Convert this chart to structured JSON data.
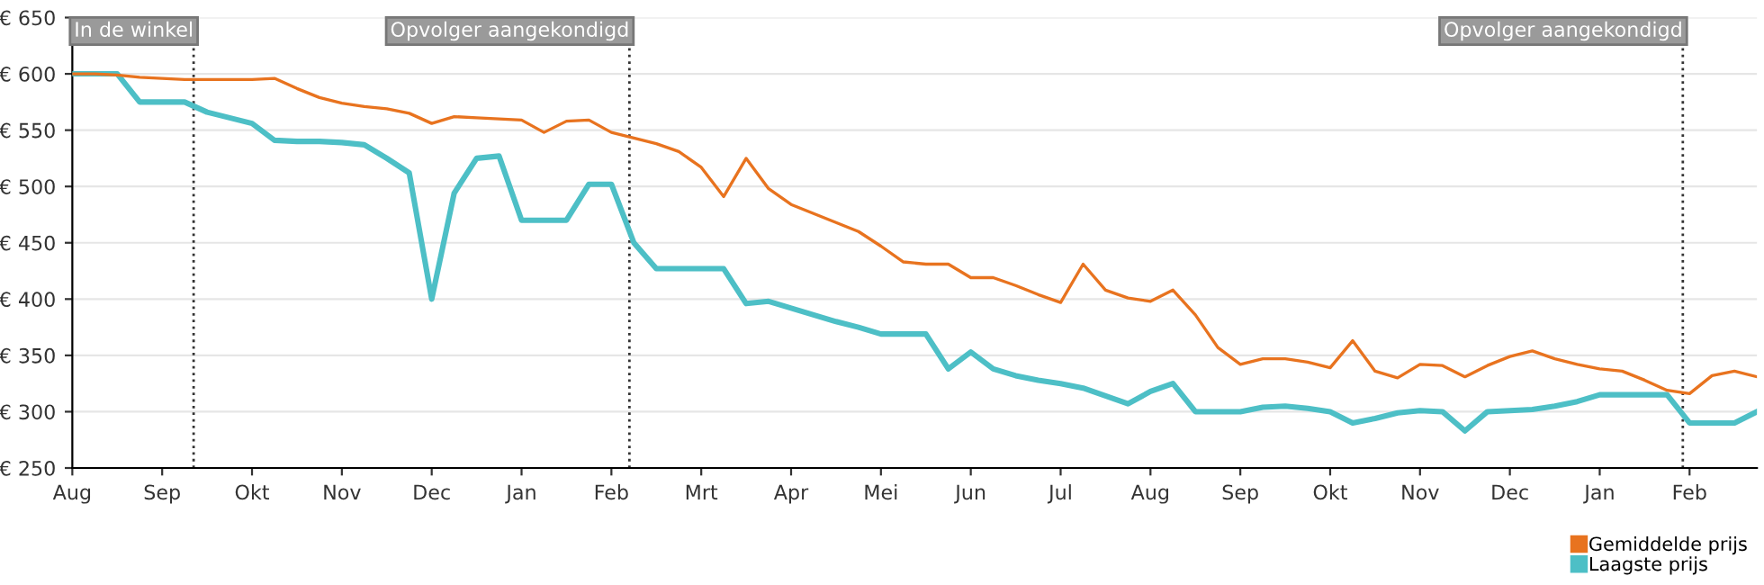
{
  "chart_data": {
    "type": "line",
    "categories": [
      "Aug",
      null,
      null,
      null,
      "Sep",
      null,
      null,
      null,
      "Okt",
      null,
      null,
      null,
      "Nov",
      null,
      null,
      null,
      "Dec",
      null,
      null,
      null,
      "Jan",
      null,
      null,
      null,
      "Feb",
      null,
      null,
      null,
      "Mrt",
      null,
      null,
      null,
      "Apr",
      null,
      null,
      null,
      "Mei",
      null,
      null,
      null,
      "Jun",
      null,
      null,
      null,
      "Jul",
      null,
      null,
      null,
      "Aug",
      null,
      null,
      null,
      "Sep",
      null,
      null,
      null,
      "Okt",
      null,
      null,
      null,
      "Nov",
      null,
      null,
      null,
      "Dec",
      null,
      null,
      null,
      "Jan",
      null,
      null,
      null,
      "Feb",
      null,
      null,
      null
    ],
    "ylim": [
      250,
      650
    ],
    "yticks": [
      {
        "value": 250,
        "label": "€ 250"
      },
      {
        "value": 300,
        "label": "€ 300"
      },
      {
        "value": 350,
        "label": "€ 350"
      },
      {
        "value": 400,
        "label": "€ 400"
      },
      {
        "value": 450,
        "label": "€ 450"
      },
      {
        "value": 500,
        "label": "€ 500"
      },
      {
        "value": 550,
        "label": "€ 550"
      },
      {
        "value": 600,
        "label": "€ 600"
      },
      {
        "value": 650,
        "label": "€ 650"
      }
    ],
    "grid": "y",
    "legend": "bottom right",
    "marker": "none",
    "line_style": "solid",
    "series": [
      {
        "name": "Gemiddelde prijs",
        "color": "#e8731f",
        "values": [
          600,
          600,
          599,
          597,
          596,
          595,
          595,
          595,
          595,
          596,
          587,
          579,
          574,
          571,
          569,
          565,
          556,
          562,
          561,
          560,
          559,
          548,
          558,
          559,
          548,
          543,
          538,
          531,
          517,
          491,
          525,
          498,
          484,
          476,
          468,
          460,
          447,
          433,
          431,
          431,
          419,
          419,
          412,
          404,
          397,
          431,
          408,
          401,
          398,
          408,
          386,
          357,
          342,
          347,
          347,
          344,
          339,
          363,
          336,
          330,
          342,
          341,
          331,
          341,
          349,
          354,
          347,
          342,
          338,
          336,
          328,
          319,
          316,
          332,
          336,
          331
        ]
      },
      {
        "name": "Laagste prijs",
        "color": "#4dbfc6",
        "values": [
          600,
          600,
          600,
          575,
          575,
          575,
          566,
          561,
          556,
          541,
          540,
          540,
          539,
          537,
          525,
          512,
          400,
          494,
          525,
          527,
          470,
          470,
          470,
          502,
          502,
          450,
          427,
          427,
          427,
          427,
          396,
          398,
          392,
          386,
          380,
          375,
          369,
          369,
          369,
          338,
          353,
          338,
          332,
          328,
          325,
          321,
          314,
          307,
          318,
          325,
          300,
          300,
          300,
          304,
          305,
          303,
          300,
          290,
          294,
          299,
          301,
          300,
          283,
          300,
          301,
          302,
          305,
          309,
          315,
          315,
          315,
          315,
          290,
          290,
          290,
          300
        ]
      }
    ],
    "annotations": [
      "In de winkel",
      "Opvolger aangekondigd",
      "Opvolger aangekondigd"
    ]
  }
}
